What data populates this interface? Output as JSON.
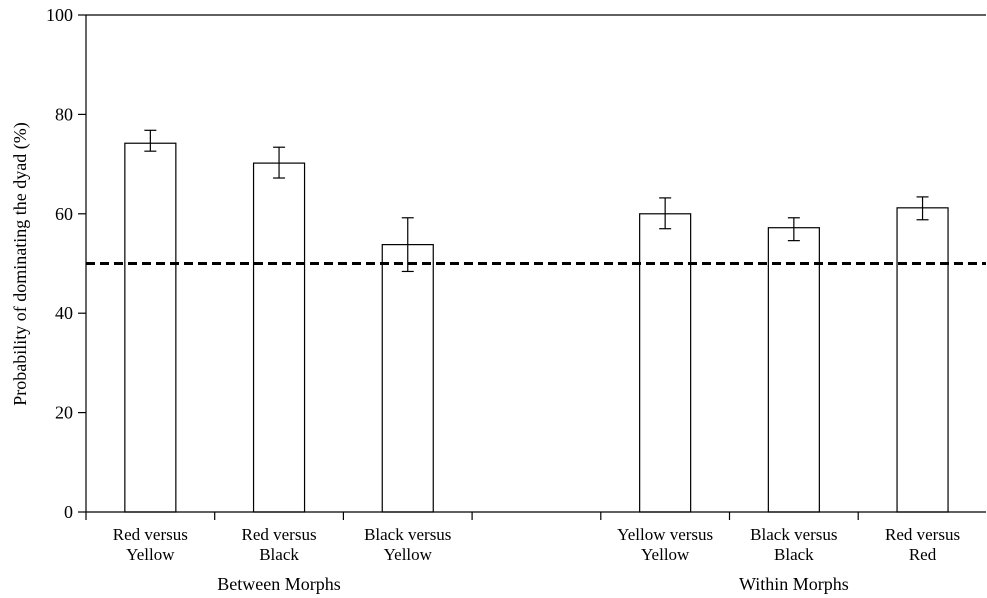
{
  "chart_data": {
    "type": "bar",
    "categories": [
      [
        "Red versus",
        "Yellow"
      ],
      [
        "Red versus",
        "Black"
      ],
      [
        "Black versus",
        "Yellow"
      ],
      [
        "Yellow versus",
        "Yellow"
      ],
      [
        "Black versus",
        "Black"
      ],
      [
        "Red versus",
        "Red"
      ]
    ],
    "values": [
      74.2,
      70.2,
      53.8,
      60.0,
      57.2,
      61.2
    ],
    "error": [
      [
        72.6,
        76.8
      ],
      [
        67.2,
        73.4
      ],
      [
        48.4,
        59.2
      ],
      [
        57.0,
        63.2
      ],
      [
        54.6,
        59.2
      ],
      [
        58.8,
        63.4
      ]
    ],
    "groups": [
      {
        "label": "Between Morphs",
        "members": [
          0,
          1,
          2
        ]
      },
      {
        "label": "Within Morphs",
        "members": [
          3,
          4,
          5
        ]
      }
    ],
    "reference_line": {
      "y": 50,
      "style": "dashed"
    },
    "ylabel": "Probability of dominating the dyad (%)",
    "xlabel": "",
    "ylim": [
      0,
      100
    ],
    "yticks": [
      0,
      20,
      40,
      60,
      80,
      100
    ],
    "grid": false,
    "colors": {
      "bar_fill": "#ffffff",
      "bar_stroke": "#000000",
      "axis": "#000000"
    }
  }
}
